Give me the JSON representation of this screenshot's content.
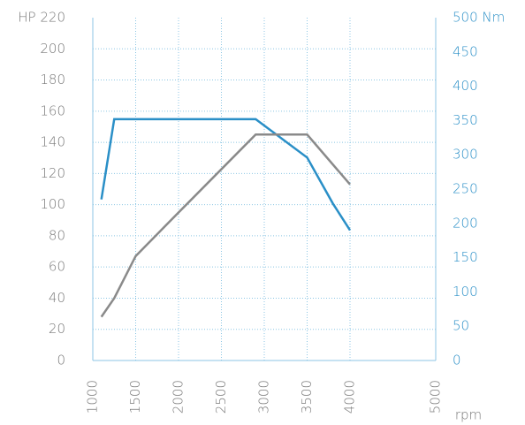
{
  "chart_data": {
    "type": "line",
    "x_label": "rpm",
    "xlim": [
      1000,
      5000
    ],
    "xticks": [
      1000,
      1500,
      2000,
      2500,
      3000,
      3500,
      4000,
      5000
    ],
    "ylim": [
      0,
      220
    ],
    "yticks": [
      0,
      20,
      40,
      60,
      80,
      100,
      120,
      140,
      160,
      180,
      200,
      {
        "value": 220,
        "label": "HP 220"
      }
    ],
    "y2lim": [
      0,
      500
    ],
    "y2ticks": [
      0,
      50,
      100,
      150,
      200,
      250,
      300,
      350,
      400,
      450,
      {
        "value": 500,
        "label": "500 Nm"
      }
    ],
    "grid": true,
    "series": [
      {
        "color": "#2a8fc7",
        "axis": "y2",
        "x": [
          1100,
          1250,
          2900,
          3500,
          3800,
          4000
        ],
        "values": [
          235,
          352,
          352,
          296,
          229,
          190
        ]
      },
      {
        "color": "#8a8a8a",
        "axis": "y",
        "x": [
          1100,
          1250,
          1500,
          2000,
          2900,
          3500,
          4000
        ],
        "values": [
          28,
          40,
          67,
          95,
          145,
          145,
          113
        ]
      }
    ]
  }
}
